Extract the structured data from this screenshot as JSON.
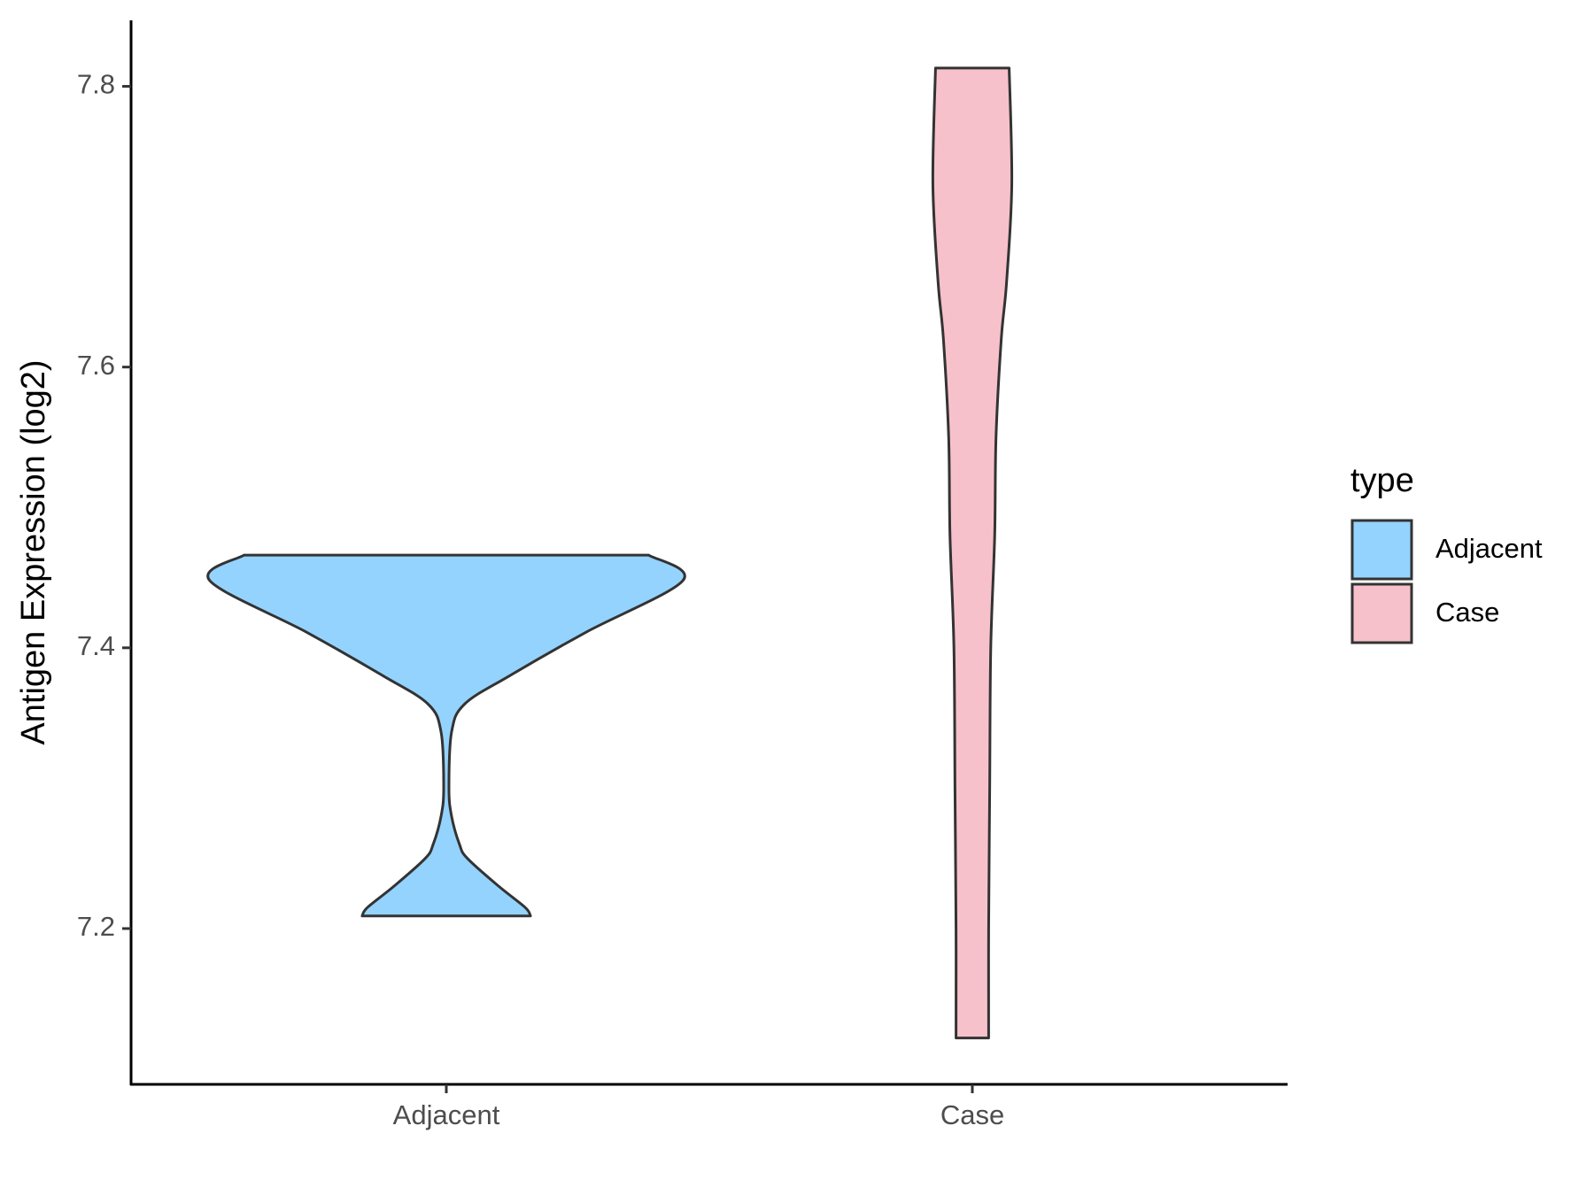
{
  "chart_data": {
    "type": "violin",
    "y_label": "Antigen Expression (log2)",
    "categories": [
      "Adjacent",
      "Case"
    ],
    "legend_title": "type",
    "series": [
      {
        "name": "Adjacent",
        "color": "#94d3fd",
        "y": [
          7.466,
          7.448,
          7.411,
          7.38,
          7.36,
          7.34,
          7.3,
          7.28,
          7.26,
          7.25,
          7.23,
          7.215,
          7.209
        ],
        "width": [
          0.77,
          0.9,
          0.53,
          0.24,
          0.07,
          0.02,
          0.01,
          0.02,
          0.05,
          0.08,
          0.2,
          0.3,
          0.32
        ]
      },
      {
        "name": "Case",
        "color": "#f7c1cb",
        "y": [
          7.813,
          7.73,
          7.66,
          7.62,
          7.55,
          7.48,
          7.4,
          7.3,
          7.2,
          7.122
        ],
        "width": [
          0.14,
          0.15,
          0.13,
          0.11,
          0.09,
          0.085,
          0.07,
          0.066,
          0.062,
          0.062
        ]
      }
    ],
    "ylim": [
      7.089,
      7.847
    ],
    "yticks": [
      7.2,
      7.4,
      7.6,
      7.8
    ]
  }
}
